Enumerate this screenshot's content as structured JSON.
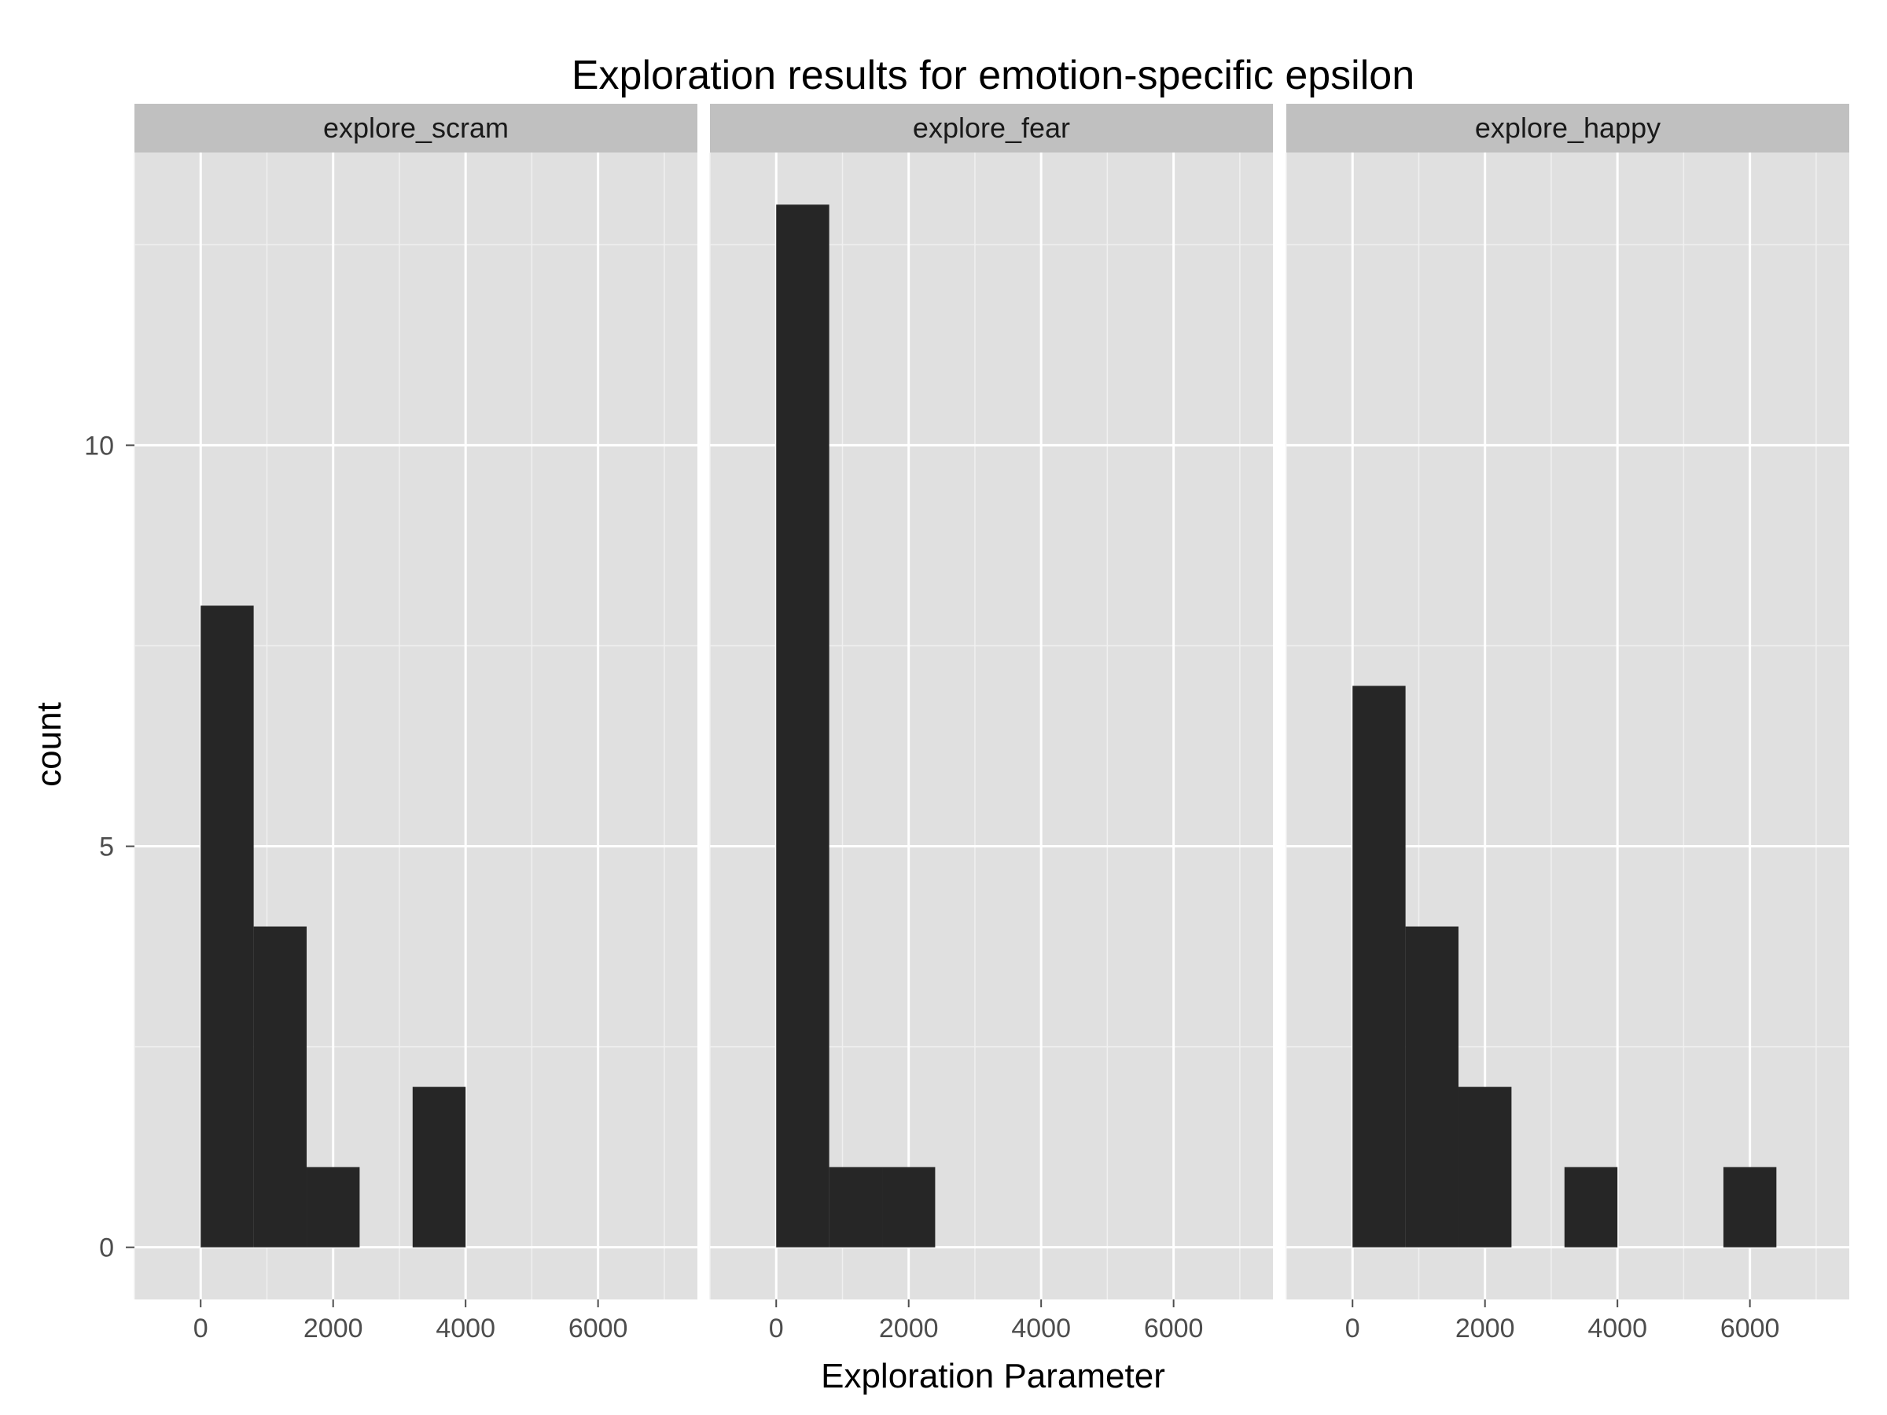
{
  "chart_data": {
    "type": "bar",
    "subtype": "faceted-histogram",
    "title": "Exploration results for emotion-specific epsilon",
    "xlabel": "Exploration Parameter",
    "ylabel": "count",
    "xlim": [
      -1000,
      7500
    ],
    "ylim": [
      -0.65,
      13.65
    ],
    "x_ticks": [
      0,
      2000,
      4000,
      6000
    ],
    "y_ticks": [
      0,
      5,
      10
    ],
    "bin_width": 800,
    "grid": true,
    "background_color": "#e0e0e0",
    "strip_color": "#c0c0c0",
    "bar_color": "#262626",
    "facets": [
      {
        "label": "explore_scram",
        "bins": [
          {
            "x0": 0,
            "x1": 800,
            "count": 8
          },
          {
            "x0": 800,
            "x1": 1600,
            "count": 4
          },
          {
            "x0": 1600,
            "x1": 2400,
            "count": 1
          },
          {
            "x0": 3200,
            "x1": 4000,
            "count": 2
          }
        ]
      },
      {
        "label": "explore_fear",
        "bins": [
          {
            "x0": 0,
            "x1": 800,
            "count": 13
          },
          {
            "x0": 800,
            "x1": 1600,
            "count": 1
          },
          {
            "x0": 1600,
            "x1": 2400,
            "count": 1
          }
        ]
      },
      {
        "label": "explore_happy",
        "bins": [
          {
            "x0": 0,
            "x1": 800,
            "count": 7
          },
          {
            "x0": 800,
            "x1": 1600,
            "count": 4
          },
          {
            "x0": 1600,
            "x1": 2400,
            "count": 2
          },
          {
            "x0": 3200,
            "x1": 4000,
            "count": 1
          },
          {
            "x0": 5600,
            "x1": 6400,
            "count": 1
          }
        ]
      }
    ]
  }
}
